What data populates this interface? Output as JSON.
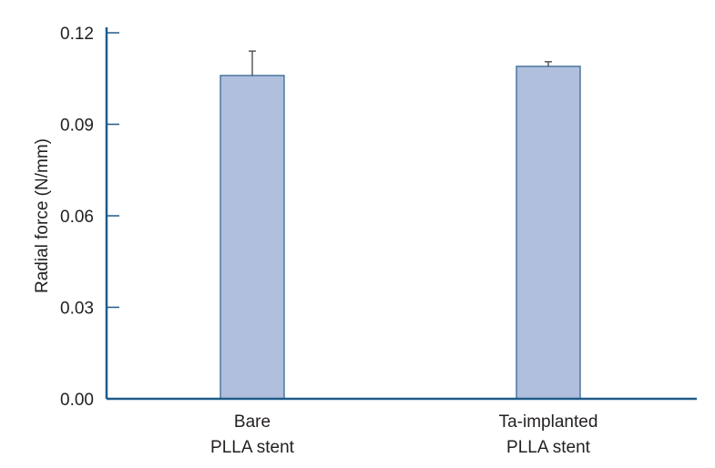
{
  "chart_data": {
    "type": "bar",
    "title": "",
    "xlabel": "",
    "ylabel": "Radial force (N/mm)",
    "ylim": [
      0,
      0.12
    ],
    "yticks": [
      "0.00",
      "0.03",
      "0.06",
      "0.09",
      "0.12"
    ],
    "categories": [
      {
        "line1": "Bare",
        "line2": "PLLA stent"
      },
      {
        "line1": "Ta-implanted",
        "line2": "PLLA stent"
      }
    ],
    "values": [
      0.106,
      0.109
    ],
    "error_plus": [
      0.008,
      0.0015
    ],
    "grid": false,
    "legend": "none",
    "colors": {
      "bar_fill": "#b0bfdd",
      "bar_stroke": "#2a5f8f",
      "axis": "#1f5b8a",
      "text": "#231f20"
    }
  }
}
